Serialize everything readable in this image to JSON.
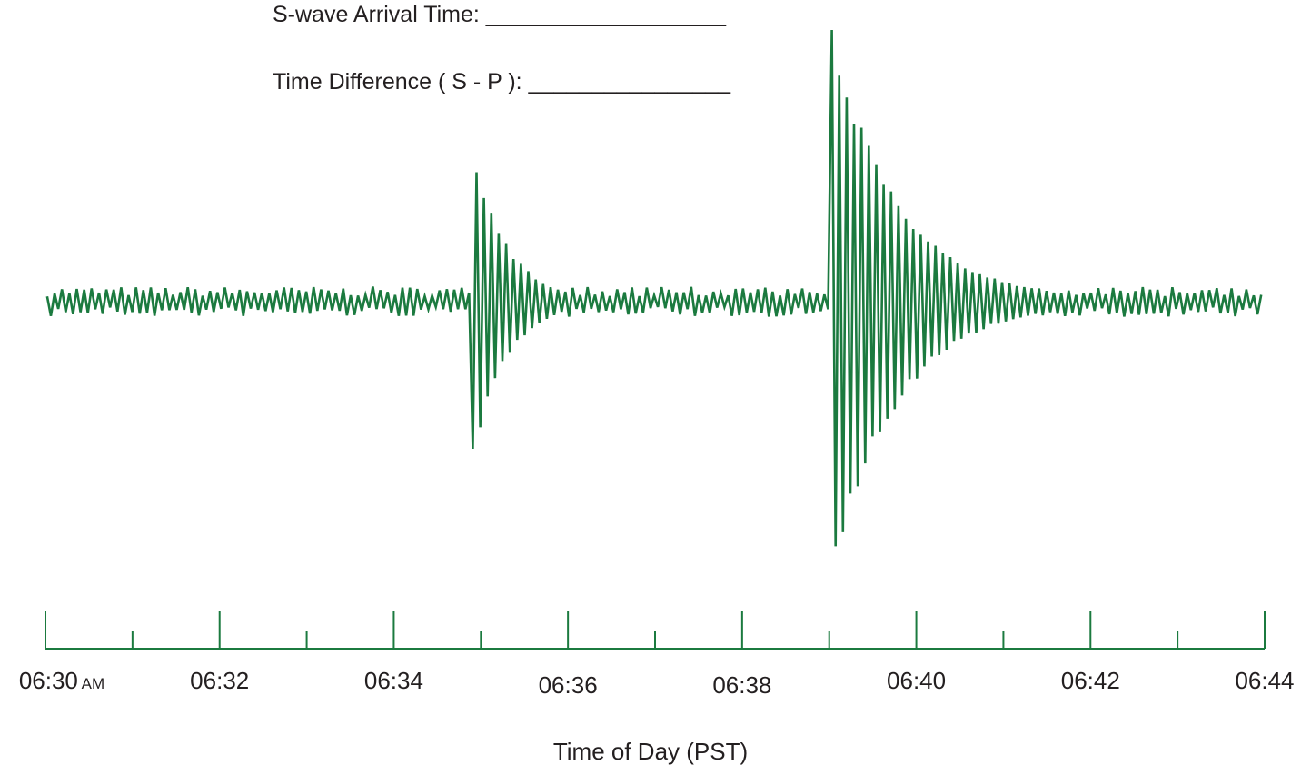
{
  "worksheet": {
    "s_wave_label": "S-wave Arrival Time:",
    "s_wave_blank": "___________________",
    "diff_label": "Time Difference ( S - P ):",
    "diff_blank": "________________"
  },
  "chart_data": {
    "type": "line",
    "title": "",
    "xlabel": "Time of Day (PST)",
    "ylabel": "",
    "x_unit": "minutes past 06:30",
    "xlim": [
      0,
      14
    ],
    "ylim": [
      -1,
      1
    ],
    "grid": false,
    "legend": "none",
    "line_color": "#1b7a3f",
    "tick_labels": [
      {
        "x": 0,
        "text": "06:30",
        "suffix": "AM"
      },
      {
        "x": 2,
        "text": "06:32"
      },
      {
        "x": 4,
        "text": "06:34"
      },
      {
        "x": 6,
        "text": "06:36"
      },
      {
        "x": 8,
        "text": "06:38"
      },
      {
        "x": 10,
        "text": "06:40"
      },
      {
        "x": 12,
        "text": "06:42"
      },
      {
        "x": 14,
        "text": "06:44"
      }
    ],
    "minor_ticks": [
      1,
      3,
      5,
      7,
      9,
      11,
      13
    ],
    "series": [
      {
        "noise_amplitude": 0.05,
        "events": [
          {
            "arrival_time": 4.9,
            "peak_amplitude": 0.56,
            "decay_minutes": 0.9,
            "period_minutes": 0.085
          },
          {
            "arrival_time": 9.0,
            "peak_amplitude": 0.98,
            "decay_minutes": 1.8,
            "period_minutes": 0.085
          }
        ]
      }
    ]
  }
}
